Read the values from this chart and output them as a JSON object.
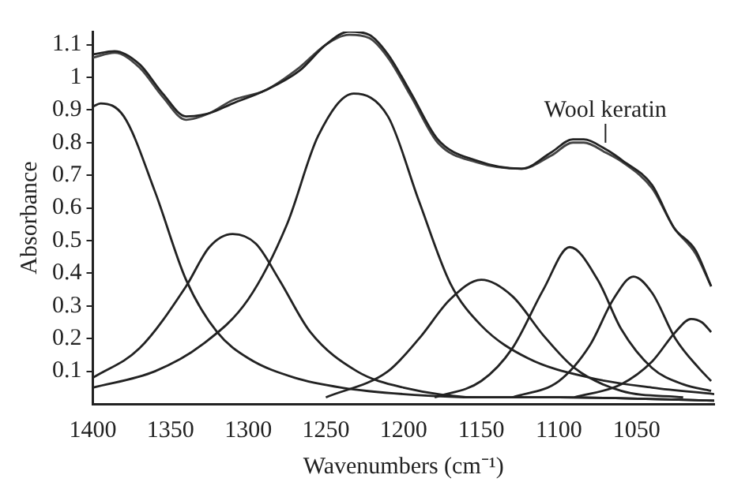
{
  "chart_data": {
    "type": "line",
    "xlabel": "Wavenumbers (cm⁻¹)",
    "ylabel": "Absorbance",
    "xlim": [
      1400,
      1000
    ],
    "xticks": [
      1400,
      1350,
      1300,
      1250,
      1200,
      1150,
      1100,
      1050
    ],
    "ylim": [
      0,
      1.14
    ],
    "yticks": [
      0.1,
      0.2,
      0.3,
      0.4,
      0.5,
      0.6,
      0.7,
      0.8,
      0.9,
      1,
      1.1
    ],
    "grid": false,
    "legend": false,
    "marker": "none",
    "line_style": "solid",
    "annotations": [
      {
        "text": "Wool keratin",
        "x": 1070,
        "y": 0.79
      }
    ],
    "series": [
      {
        "color": "#222222",
        "x": [
          1400,
          1386,
          1370,
          1355,
          1340,
          1325,
          1310,
          1289,
          1267,
          1250,
          1235,
          1222,
          1210,
          1195,
          1178,
          1153,
          1124,
          1105,
          1091,
          1084,
          1070,
          1059,
          1040,
          1026,
          1012,
          1002
        ],
        "values": [
          1.07,
          1.08,
          1.04,
          0.95,
          0.88,
          0.89,
          0.92,
          0.96,
          1.02,
          1.1,
          1.14,
          1.13,
          1.07,
          0.95,
          0.81,
          0.745,
          0.72,
          0.77,
          0.81,
          0.81,
          0.78,
          0.745,
          0.67,
          0.54,
          0.47,
          0.36
        ]
      },
      {
        "color": "#444444",
        "x": [
          1400,
          1386,
          1370,
          1355,
          1340,
          1325,
          1310,
          1289,
          1267,
          1250,
          1235,
          1222,
          1210,
          1195,
          1178,
          1153,
          1124,
          1105,
          1091,
          1084,
          1070,
          1059,
          1040,
          1026,
          1012,
          1002
        ],
        "values": [
          1.06,
          1.075,
          1.03,
          0.94,
          0.87,
          0.89,
          0.93,
          0.96,
          1.03,
          1.1,
          1.13,
          1.12,
          1.06,
          0.94,
          0.8,
          0.74,
          0.72,
          0.76,
          0.8,
          0.8,
          0.77,
          0.74,
          0.66,
          0.54,
          0.46,
          0.36
        ]
      },
      {
        "color": "#222222",
        "x": [
          1400,
          1395,
          1380,
          1360,
          1340,
          1320,
          1300,
          1270,
          1240,
          1200,
          1150,
          1100,
          1000
        ],
        "values": [
          0.91,
          0.92,
          0.88,
          0.65,
          0.38,
          0.22,
          0.14,
          0.08,
          0.05,
          0.03,
          0.02,
          0.02,
          0.01
        ]
      },
      {
        "color": "#222222",
        "x": [
          1400,
          1370,
          1340,
          1325,
          1310,
          1295,
          1280,
          1260,
          1230,
          1200,
          1150,
          1100,
          1000
        ],
        "values": [
          0.08,
          0.17,
          0.36,
          0.48,
          0.52,
          0.49,
          0.38,
          0.22,
          0.1,
          0.05,
          0.02,
          0.02,
          0.01
        ]
      },
      {
        "color": "#222222",
        "x": [
          1400,
          1360,
          1330,
          1300,
          1275,
          1255,
          1232,
          1210,
          1190,
          1170,
          1150,
          1120,
          1080,
          1040,
          1000
        ],
        "values": [
          0.05,
          0.1,
          0.18,
          0.32,
          0.55,
          0.82,
          0.95,
          0.88,
          0.62,
          0.37,
          0.24,
          0.14,
          0.08,
          0.05,
          0.03
        ]
      },
      {
        "color": "#222222",
        "x": [
          1250,
          1210,
          1190,
          1170,
          1150,
          1130,
          1110,
          1090,
          1060,
          1020
        ],
        "values": [
          0.02,
          0.1,
          0.2,
          0.32,
          0.38,
          0.33,
          0.21,
          0.11,
          0.04,
          0.02
        ]
      },
      {
        "color": "#222222",
        "x": [
          1180,
          1150,
          1130,
          1110,
          1093,
          1075,
          1060,
          1040,
          1020,
          1002
        ],
        "values": [
          0.02,
          0.07,
          0.17,
          0.35,
          0.48,
          0.38,
          0.23,
          0.11,
          0.06,
          0.04
        ]
      },
      {
        "color": "#222222",
        "x": [
          1130,
          1100,
          1080,
          1065,
          1052,
          1040,
          1025,
          1010,
          1002
        ],
        "values": [
          0.02,
          0.07,
          0.18,
          0.32,
          0.39,
          0.34,
          0.2,
          0.11,
          0.07
        ]
      },
      {
        "color": "#222222",
        "x": [
          1090,
          1060,
          1040,
          1025,
          1015,
          1008,
          1002
        ],
        "values": [
          0.02,
          0.06,
          0.13,
          0.22,
          0.26,
          0.25,
          0.22
        ]
      }
    ]
  }
}
